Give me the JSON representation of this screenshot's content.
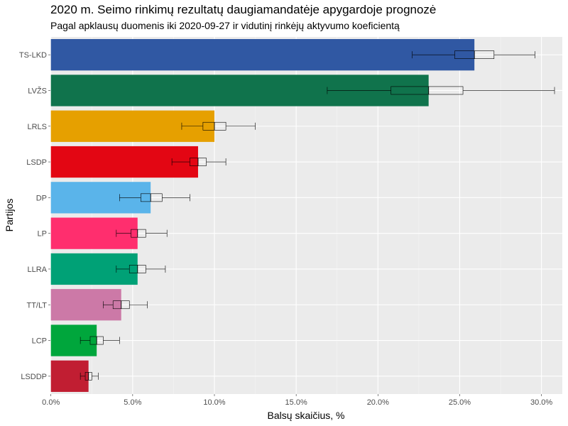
{
  "chart_data": {
    "type": "bar",
    "orientation": "horizontal",
    "title": "2020 m. Seimo rinkimų rezultatų daugiamandatėje apygardoje prognozė",
    "subtitle": "Pagal apklausų duomenis iki 2020-09-27 ir vidutinį rinkėjų aktyvumo koeficientą",
    "xlabel": "Balsų skaičius, %",
    "ylabel": "Partijos",
    "xlim": [
      0,
      31.3
    ],
    "x_ticks": [
      0,
      5,
      10,
      15,
      20,
      25,
      30
    ],
    "x_tick_labels": [
      "0.0%",
      "5.0%",
      "10.0%",
      "15.0%",
      "20.0%",
      "25.0%",
      "30.0%"
    ],
    "grid": true,
    "legend": "none",
    "categories": [
      "TS-LKD",
      "LVŽS",
      "LRLS",
      "LSDP",
      "DP",
      "LP",
      "LLRA",
      "TT/LT",
      "LCP",
      "LSDDP"
    ],
    "values": [
      25.9,
      23.1,
      10.0,
      9.0,
      6.1,
      5.3,
      5.3,
      4.3,
      2.8,
      2.3
    ],
    "colors": [
      "#3058a3",
      "#10734c",
      "#e6a000",
      "#e30613",
      "#5ab4ea",
      "#ff2e6e",
      "#00a176",
      "#cc79a7",
      "#00a63c",
      "#c11e32"
    ],
    "intervals": [
      {
        "whisker_low": 22.1,
        "box_low": 24.7,
        "median": 25.9,
        "box_high": 27.1,
        "whisker_high": 29.6
      },
      {
        "whisker_low": 16.9,
        "box_low": 20.8,
        "median": 23.1,
        "box_high": 25.2,
        "whisker_high": 30.8
      },
      {
        "whisker_low": 8.0,
        "box_low": 9.3,
        "median": 10.0,
        "box_high": 10.7,
        "whisker_high": 12.5
      },
      {
        "whisker_low": 7.4,
        "box_low": 8.5,
        "median": 9.0,
        "box_high": 9.5,
        "whisker_high": 10.7
      },
      {
        "whisker_low": 4.2,
        "box_low": 5.5,
        "median": 6.1,
        "box_high": 6.8,
        "whisker_high": 8.5
      },
      {
        "whisker_low": 4.0,
        "box_low": 4.9,
        "median": 5.3,
        "box_high": 5.8,
        "whisker_high": 7.1
      },
      {
        "whisker_low": 4.0,
        "box_low": 4.8,
        "median": 5.3,
        "box_high": 5.8,
        "whisker_high": 7.0
      },
      {
        "whisker_low": 3.2,
        "box_low": 3.8,
        "median": 4.3,
        "box_high": 4.8,
        "whisker_high": 5.9
      },
      {
        "whisker_low": 1.8,
        "box_low": 2.4,
        "median": 2.8,
        "box_high": 3.2,
        "whisker_high": 4.2
      },
      {
        "whisker_low": 1.8,
        "box_low": 2.1,
        "median": 2.3,
        "box_high": 2.5,
        "whisker_high": 2.9
      }
    ]
  }
}
